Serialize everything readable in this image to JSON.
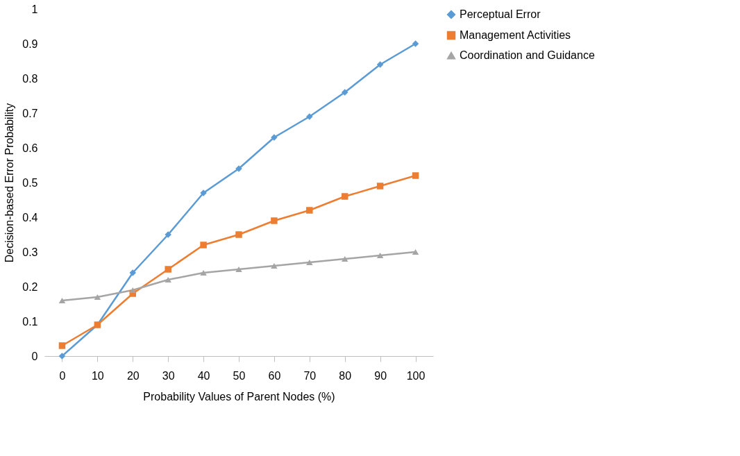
{
  "chart_data": {
    "type": "line",
    "xlabel": "Probability Values of Parent Nodes (%)",
    "ylabel": "Decision-based Error Probability",
    "categories": [
      "0",
      "10",
      "20",
      "30",
      "40",
      "50",
      "60",
      "70",
      "80",
      "90",
      "100"
    ],
    "series": [
      {
        "name": "Perceptual Error",
        "color": "#5b9bd5",
        "marker": "diamond",
        "values": [
          0,
          0.09,
          0.24,
          0.35,
          0.47,
          0.54,
          0.63,
          0.69,
          0.76,
          0.84,
          0.9
        ]
      },
      {
        "name": "Management Activities",
        "color": "#ed7d31",
        "marker": "square",
        "values": [
          0.03,
          0.09,
          0.18,
          0.25,
          0.32,
          0.35,
          0.39,
          0.42,
          0.46,
          0.49,
          0.52
        ]
      },
      {
        "name": "Coordination and Guidance",
        "color": "#a5a5a5",
        "marker": "triangle",
        "values": [
          0.16,
          0.17,
          0.19,
          0.22,
          0.24,
          0.25,
          0.26,
          0.27,
          0.28,
          0.29,
          0.3
        ]
      }
    ],
    "ylim": [
      0,
      1
    ],
    "yticks": [
      0,
      0.1,
      0.2,
      0.3,
      0.4,
      0.5,
      0.6,
      0.7,
      0.8,
      0.9,
      1
    ],
    "grid": false,
    "legend": "right",
    "line_style": "solid"
  }
}
